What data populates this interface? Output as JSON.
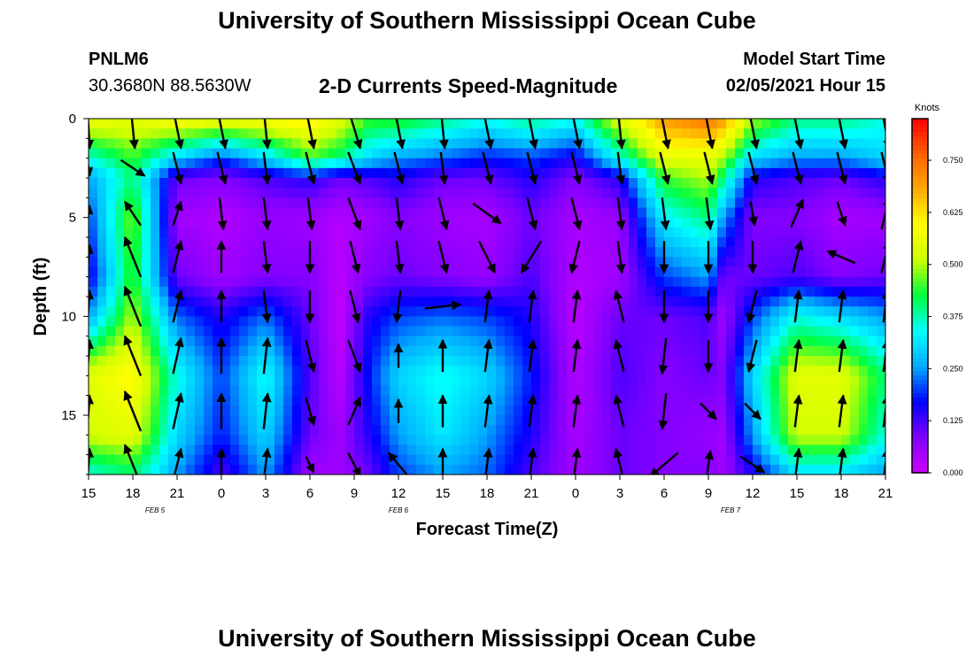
{
  "header": {
    "title": "University of Southern Mississippi Ocean Cube",
    "footer_title": "University of Southern Mississippi Ocean Cube",
    "station_id": "PNLM6",
    "station_location": "30.3680N 88.5630W",
    "subtitle": "2-D Currents Speed-Magnitude",
    "model_start_label": "Model Start Time",
    "model_start_value": "02/05/2021 Hour 15"
  },
  "chart_data": {
    "type": "heatmap",
    "title": "2-D Currents Speed-Magnitude",
    "xlabel": "Forecast Time(Z)",
    "ylabel": "Depth (ft)",
    "x_ticks": [
      "15",
      "18",
      "21",
      "0",
      "3",
      "6",
      "9",
      "12",
      "15",
      "18",
      "21",
      "0",
      "3",
      "6",
      "9",
      "12",
      "15",
      "18",
      "21"
    ],
    "x_range_hours": [
      0,
      54
    ],
    "date_labels": [
      {
        "text": "FEB 5",
        "hour": 4.5
      },
      {
        "text": "FEB 6",
        "hour": 21
      },
      {
        "text": "FEB 7",
        "hour": 43.5
      }
    ],
    "y_ticks": [
      0,
      5,
      10,
      15
    ],
    "ylim": [
      0,
      18
    ],
    "y_inverted": true,
    "colorbar": {
      "label": "Knots",
      "range": [
        0,
        0.85
      ],
      "ticks": [
        "0.750",
        "0.625",
        "0.500",
        "0.375",
        "0.250",
        "0.125",
        "0.000"
      ],
      "tick_values": [
        0.75,
        0.625,
        0.5,
        0.375,
        0.25,
        0.125,
        0.0
      ],
      "colors": [
        "#cc00ff",
        "#8000ff",
        "#0000ff",
        "#00aaff",
        "#00ffff",
        "#00ff40",
        "#ccff00",
        "#ffff00",
        "#ffaa00",
        "#ff6000",
        "#ff0000"
      ]
    },
    "speed_columns": [
      {
        "hour": 0,
        "depth": [
          0,
          2,
          3,
          5,
          8,
          10,
          13,
          16,
          18
        ],
        "speed": [
          0.58,
          0.35,
          0.25,
          0.2,
          0.15,
          0.25,
          0.55,
          0.52,
          0.35
        ]
      },
      {
        "hour": 3,
        "depth": [
          0,
          2,
          3,
          5,
          8,
          10,
          13,
          16,
          18
        ],
        "speed": [
          0.55,
          0.45,
          0.4,
          0.48,
          0.45,
          0.5,
          0.6,
          0.55,
          0.4
        ]
      },
      {
        "hour": 6,
        "depth": [
          0,
          2,
          3,
          5,
          8,
          10,
          13,
          16,
          18
        ],
        "speed": [
          0.6,
          0.3,
          0.1,
          0.05,
          0.1,
          0.22,
          0.35,
          0.3,
          0.25
        ]
      },
      {
        "hour": 9,
        "depth": [
          0,
          2,
          3,
          5,
          8,
          10,
          13,
          16,
          18
        ],
        "speed": [
          0.58,
          0.2,
          0.08,
          0.03,
          0.05,
          0.15,
          0.2,
          0.18,
          0.12
        ]
      },
      {
        "hour": 12,
        "depth": [
          0,
          2,
          3,
          5,
          8,
          10,
          13,
          16,
          18
        ],
        "speed": [
          0.6,
          0.3,
          0.12,
          0.06,
          0.08,
          0.22,
          0.35,
          0.3,
          0.25
        ]
      },
      {
        "hour": 15,
        "depth": [
          0,
          2,
          3,
          5,
          8,
          10,
          13,
          16,
          18
        ],
        "speed": [
          0.62,
          0.45,
          0.15,
          0.05,
          0.08,
          0.1,
          0.12,
          0.1,
          0.05
        ]
      },
      {
        "hour": 17,
        "depth": [
          0,
          2,
          3,
          5,
          8,
          10,
          13,
          16,
          18
        ],
        "speed": [
          0.55,
          0.4,
          0.1,
          0.03,
          0.02,
          0.01,
          0.02,
          0.05,
          0.05
        ]
      },
      {
        "hour": 19,
        "depth": [
          0,
          2,
          3,
          5,
          8,
          10,
          13,
          16,
          18
        ],
        "speed": [
          0.45,
          0.3,
          0.12,
          0.05,
          0.08,
          0.15,
          0.18,
          0.15,
          0.1
        ]
      },
      {
        "hour": 21,
        "depth": [
          0,
          2,
          3,
          5,
          8,
          10,
          13,
          16,
          18
        ],
        "speed": [
          0.45,
          0.25,
          0.15,
          0.08,
          0.1,
          0.2,
          0.3,
          0.25,
          0.2
        ]
      },
      {
        "hour": 24,
        "depth": [
          0,
          2,
          3,
          5,
          8,
          10,
          13,
          16,
          18
        ],
        "speed": [
          0.4,
          0.22,
          0.1,
          0.05,
          0.08,
          0.22,
          0.35,
          0.32,
          0.25
        ]
      },
      {
        "hour": 27,
        "depth": [
          0,
          2,
          3,
          5,
          8,
          10,
          13,
          16,
          18
        ],
        "speed": [
          0.35,
          0.18,
          0.1,
          0.04,
          0.06,
          0.2,
          0.3,
          0.25,
          0.22
        ]
      },
      {
        "hour": 30,
        "depth": [
          0,
          2,
          3,
          5,
          8,
          10,
          13,
          16,
          18
        ],
        "speed": [
          0.4,
          0.2,
          0.15,
          0.1,
          0.12,
          0.15,
          0.18,
          0.15,
          0.12
        ]
      },
      {
        "hour": 33,
        "depth": [
          0,
          2,
          3,
          5,
          8,
          10,
          13,
          16,
          18
        ],
        "speed": [
          0.35,
          0.15,
          0.08,
          0.04,
          0.03,
          0.02,
          0.03,
          0.04,
          0.05
        ]
      },
      {
        "hour": 36,
        "depth": [
          0,
          2,
          3,
          5,
          8,
          10,
          13,
          16,
          18
        ],
        "speed": [
          0.55,
          0.35,
          0.15,
          0.06,
          0.05,
          0.1,
          0.12,
          0.1,
          0.1
        ]
      },
      {
        "hour": 39,
        "depth": [
          0,
          2,
          3,
          5,
          8,
          10,
          13,
          16,
          18
        ],
        "speed": [
          0.7,
          0.55,
          0.45,
          0.33,
          0.2,
          0.1,
          0.08,
          0.08,
          0.08
        ]
      },
      {
        "hour": 42,
        "depth": [
          0,
          2,
          3,
          5,
          8,
          10,
          13,
          16,
          18
        ],
        "speed": [
          0.75,
          0.55,
          0.5,
          0.4,
          0.25,
          0.12,
          0.1,
          0.06,
          0.08
        ]
      },
      {
        "hour": 43,
        "depth": [
          0,
          2,
          3,
          5,
          8,
          10,
          13,
          16,
          18
        ],
        "speed": [
          0.7,
          0.5,
          0.4,
          0.25,
          0.1,
          0.05,
          0.08,
          0.05,
          0.05
        ]
      },
      {
        "hour": 45,
        "depth": [
          0,
          2,
          3,
          5,
          8,
          10,
          13,
          16,
          18
        ],
        "speed": [
          0.5,
          0.3,
          0.15,
          0.08,
          0.1,
          0.2,
          0.3,
          0.25,
          0.15
        ]
      },
      {
        "hour": 48,
        "depth": [
          0,
          2,
          3,
          5,
          8,
          10,
          13,
          16,
          18
        ],
        "speed": [
          0.4,
          0.25,
          0.12,
          0.08,
          0.12,
          0.35,
          0.55,
          0.52,
          0.3
        ]
      },
      {
        "hour": 51,
        "depth": [
          0,
          2,
          3,
          5,
          8,
          10,
          13,
          16,
          18
        ],
        "speed": [
          0.4,
          0.25,
          0.1,
          0.04,
          0.08,
          0.3,
          0.55,
          0.52,
          0.3
        ]
      },
      {
        "hour": 54,
        "depth": [
          0,
          2,
          3,
          5,
          8,
          10,
          13,
          16,
          18
        ],
        "speed": [
          0.35,
          0.3,
          0.15,
          0.05,
          0.1,
          0.25,
          0.4,
          0.35,
          0.25
        ]
      }
    ],
    "vector_depths_ft": [
      0.5,
      2.5,
      4.8,
      7,
      9.5,
      12,
      14.8,
      17.5
    ],
    "vector_hours": [
      0,
      3,
      6,
      9,
      12,
      15,
      18,
      21,
      24,
      27,
      30,
      33,
      36,
      39,
      42,
      45,
      48,
      51,
      54
    ],
    "vector_u": [
      [
        0.03,
        0.03,
        0.03,
        0.03,
        0.03,
        0.03,
        0.03,
        0.03
      ],
      [
        0.05,
        0.3,
        -0.2,
        -0.2,
        -0.2,
        -0.2,
        -0.2,
        -0.2
      ],
      [
        0.1,
        0.1,
        0.1,
        0.1,
        0.1,
        0.1,
        0.1,
        0.1
      ],
      [
        0.1,
        0.1,
        0.05,
        0.0,
        0.0,
        0.0,
        0.0,
        0.0
      ],
      [
        0.05,
        0.05,
        0.05,
        0.05,
        0.05,
        0.05,
        0.05,
        0.05
      ],
      [
        0.1,
        0.1,
        0.05,
        0.0,
        0.0,
        0.1,
        0.1,
        0.1
      ],
      [
        0.15,
        0.15,
        0.15,
        0.1,
        0.1,
        0.15,
        0.15,
        0.15
      ],
      [
        0.1,
        0.1,
        0.05,
        0.05,
        -0.05,
        0.0,
        0.0,
        -0.25
      ],
      [
        0.05,
        0.05,
        0.1,
        0.1,
        0.45,
        0.0,
        0.0,
        0.0
      ],
      [
        0.1,
        0.1,
        0.35,
        0.2,
        0.05,
        0.05,
        0.05,
        0.05
      ],
      [
        0.1,
        0.1,
        0.1,
        -0.25,
        0.05,
        0.05,
        0.05,
        0.05
      ],
      [
        0.1,
        0.1,
        0.1,
        -0.1,
        0.05,
        0.05,
        0.05,
        0.05
      ],
      [
        0.05,
        0.05,
        0.05,
        0.05,
        -0.1,
        -0.1,
        -0.1,
        -0.1
      ],
      [
        0.1,
        0.1,
        0.05,
        0.0,
        0.0,
        -0.05,
        -0.05,
        -0.35
      ],
      [
        0.1,
        0.1,
        0.05,
        0.0,
        0.0,
        0.0,
        0.2,
        0.05
      ],
      [
        0.1,
        0.1,
        0.05,
        0.0,
        -0.1,
        -0.1,
        0.2,
        0.3
      ],
      [
        0.1,
        0.1,
        0.15,
        0.1,
        0.05,
        0.05,
        0.05,
        0.05
      ],
      [
        0.1,
        0.1,
        0.1,
        -0.35,
        0.05,
        0.05,
        0.05,
        0.05
      ],
      [
        0.1,
        0.1,
        0.1,
        0.1,
        0.05,
        0.05,
        0.05,
        0.05
      ]
    ],
    "vector_v": [
      [
        -0.5,
        -0.2,
        0.2,
        0.3,
        0.4,
        0.4,
        0.4,
        0.4
      ],
      [
        -0.5,
        -0.2,
        0.3,
        0.5,
        0.5,
        0.5,
        0.5,
        0.5
      ],
      [
        -0.5,
        -0.4,
        0.3,
        0.4,
        0.4,
        0.45,
        0.45,
        0.4
      ],
      [
        -0.5,
        -0.4,
        -0.4,
        0.4,
        0.4,
        0.45,
        0.45,
        0.4
      ],
      [
        -0.5,
        -0.4,
        -0.4,
        -0.4,
        -0.4,
        0.45,
        0.45,
        0.4
      ],
      [
        -0.5,
        -0.4,
        -0.4,
        -0.4,
        -0.4,
        -0.4,
        -0.35,
        -0.2
      ],
      [
        -0.5,
        -0.4,
        -0.4,
        -0.4,
        -0.4,
        -0.4,
        0.35,
        -0.3
      ],
      [
        -0.5,
        -0.4,
        -0.4,
        -0.4,
        -0.4,
        0.3,
        0.3,
        0.3
      ],
      [
        -0.5,
        -0.4,
        -0.4,
        -0.4,
        0.05,
        0.4,
        0.4,
        0.4
      ],
      [
        -0.5,
        -0.4,
        -0.25,
        -0.4,
        0.4,
        0.4,
        0.4,
        0.4
      ],
      [
        -0.5,
        -0.4,
        -0.4,
        -0.4,
        0.4,
        0.4,
        0.4,
        0.4
      ],
      [
        -0.5,
        -0.4,
        -0.4,
        -0.4,
        0.4,
        0.4,
        0.4,
        0.4
      ],
      [
        -0.5,
        -0.4,
        -0.4,
        -0.4,
        0.4,
        0.4,
        0.4,
        0.4
      ],
      [
        -0.5,
        -0.4,
        -0.4,
        -0.4,
        -0.4,
        -0.45,
        -0.45,
        -0.3
      ],
      [
        -0.5,
        -0.4,
        -0.4,
        -0.4,
        -0.4,
        -0.4,
        -0.2,
        0.35
      ],
      [
        -0.5,
        -0.4,
        -0.3,
        -0.4,
        -0.4,
        -0.4,
        -0.2,
        -0.2
      ],
      [
        -0.5,
        -0.4,
        0.35,
        0.4,
        0.4,
        0.4,
        0.4,
        0.4
      ],
      [
        -0.5,
        -0.4,
        -0.3,
        0.15,
        0.4,
        0.4,
        0.4,
        0.4
      ],
      [
        -0.5,
        -0.4,
        0.4,
        0.4,
        0.4,
        0.4,
        0.4,
        0.4
      ]
    ]
  }
}
